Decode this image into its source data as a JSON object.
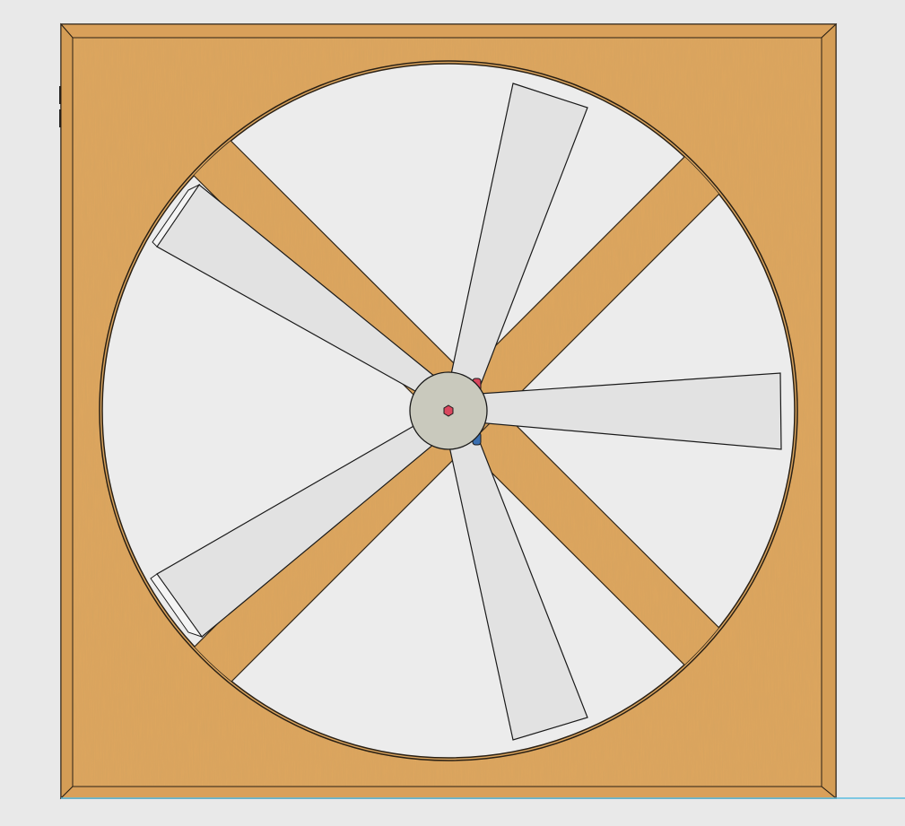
{
  "viewport": {
    "background": "#e9e9e9"
  },
  "model": {
    "frame": {
      "material": "wood",
      "color": "#dea65e",
      "bevel_color": "#d49d56",
      "edge_color": "#2a2014"
    },
    "opening": {
      "color": "#ececec"
    },
    "cross_braces": {
      "count": 2,
      "color": "#dea65e"
    },
    "blades": {
      "count": 5,
      "color": "#e2e2e2",
      "edge_color": "#1a1a1a"
    },
    "hub": {
      "color": "#c9c9bd",
      "center_nut_color": "#d9475e",
      "clip_colors": [
        "#d9475e",
        "#3a6fb0"
      ]
    },
    "ground_line": {
      "color": "#5bbde0"
    }
  }
}
